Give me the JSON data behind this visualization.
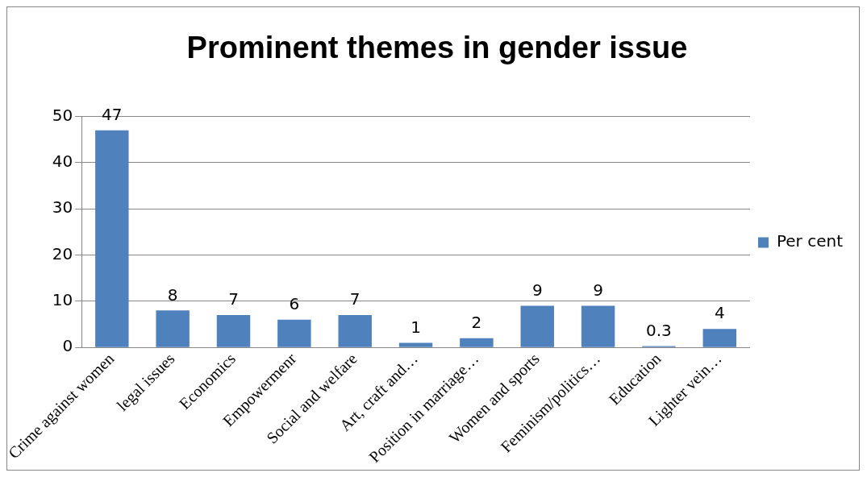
{
  "chart_data": {
    "type": "bar",
    "title": "Prominent themes in gender issue",
    "categories": [
      "Crime against women",
      "legal issues",
      "Economics",
      "Empowermenr",
      "Social and welfare",
      "Art, craft and…",
      "Position in marriage…",
      "Women and sports",
      "Feminism/politics…",
      "Education",
      "Lighter vein…"
    ],
    "series": [
      {
        "name": "Per cent",
        "color": "#4f81bd",
        "values": [
          47,
          8,
          7,
          6,
          7,
          1,
          2,
          9,
          9,
          0.3,
          4
        ]
      }
    ],
    "ylim": [
      0,
      50
    ],
    "yticks": [
      0,
      10,
      20,
      30,
      40,
      50
    ],
    "grid": "y",
    "legend": "right",
    "data_labels": true
  }
}
